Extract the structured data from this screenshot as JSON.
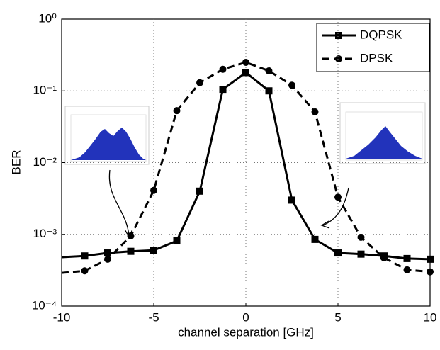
{
  "chart_data": {
    "type": "line",
    "xlabel": "channel separation [GHz]",
    "ylabel": "BER",
    "xlim": [
      -10,
      10
    ],
    "xticks": [
      -10,
      -5,
      0,
      5,
      10
    ],
    "ylim": [
      0.0001,
      1
    ],
    "yscale": "log",
    "yticks": [
      {
        "value": 0.0001,
        "label": "10⁻⁴"
      },
      {
        "value": 0.001,
        "label": "10⁻³"
      },
      {
        "value": 0.01,
        "label": "10⁻²"
      },
      {
        "value": 0.1,
        "label": "10⁻¹"
      },
      {
        "value": 1,
        "label": "10⁰"
      }
    ],
    "grid": true,
    "legend": "northeast",
    "series": [
      {
        "name": "DQPSK",
        "color": "#000000",
        "linestyle": "solid",
        "marker": "square",
        "x": [
          -10,
          -8.75,
          -7.5,
          -6.25,
          -5,
          -3.75,
          -2.5,
          -1.25,
          0,
          1.25,
          2.5,
          3.75,
          5,
          6.25,
          7.5,
          8.75,
          10
        ],
        "values": [
          0.00048,
          0.0005,
          0.00055,
          0.00058,
          0.0006,
          0.00081,
          0.004,
          0.105,
          0.18,
          0.1,
          0.003,
          0.00085,
          0.00055,
          0.00053,
          0.0005,
          0.00046,
          0.00045
        ]
      },
      {
        "name": "DPSK",
        "color": "#000000",
        "linestyle": "dashed",
        "marker": "circle",
        "x": [
          -10,
          -8.75,
          -7.5,
          -6.25,
          -5,
          -3.75,
          -2.5,
          -1.25,
          0,
          1.25,
          2.5,
          3.75,
          5,
          6.25,
          7.5,
          8.75,
          10
        ],
        "values": [
          0.00029,
          0.00031,
          0.00045,
          0.00095,
          0.0041,
          0.053,
          0.13,
          0.2,
          0.25,
          0.19,
          0.12,
          0.051,
          0.0033,
          0.00091,
          0.00047,
          0.00032,
          0.0003
        ]
      }
    ]
  }
}
